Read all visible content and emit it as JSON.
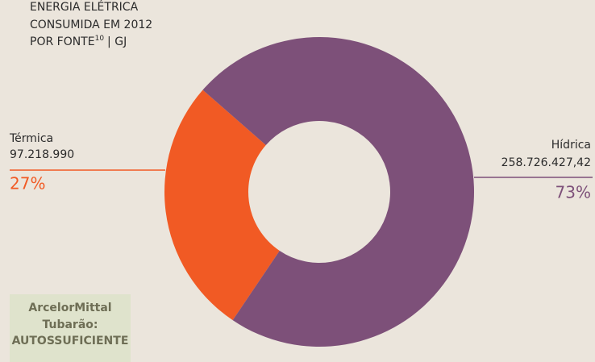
{
  "chart_data": {
    "type": "donut",
    "title": [
      "ENERGIA ELÉTRICA",
      "CONSUMIDA EM 2012",
      "POR FONTE"
    ],
    "title_footnote": "10",
    "unit": "| GJ",
    "categories": [
      "Térmica",
      "Hídrica"
    ],
    "values": [
      27,
      73
    ],
    "value_labels": [
      "27%",
      "73%"
    ],
    "amount_labels": [
      "97.218.990",
      "258.726.427,42"
    ],
    "colors": [
      "#f15a24",
      "#7d5079"
    ],
    "note": [
      "ArcelorMittal",
      "Tubarão:",
      "AUTOSSUFICIENTE"
    ]
  }
}
